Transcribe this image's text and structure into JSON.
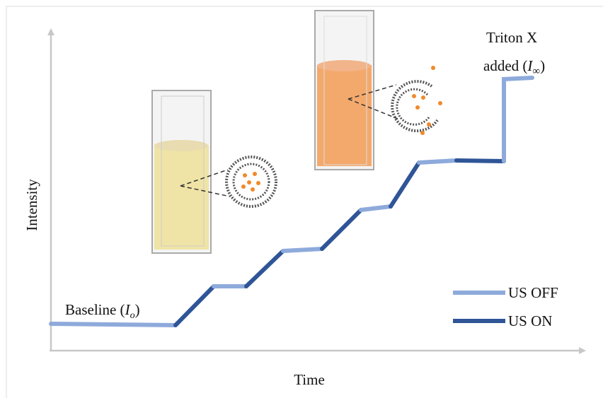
{
  "axes": {
    "y_label": "Intensity",
    "x_label": "Time"
  },
  "annotations": {
    "baseline": {
      "text": "Baseline (",
      "symbol": "I",
      "subscript": "o",
      "close": ")"
    },
    "triton": {
      "line1": "Triton X",
      "text": "added (",
      "symbol": "I",
      "subscript": "∞",
      "close": ")"
    }
  },
  "legend": {
    "items": [
      "US OFF",
      "US ON"
    ]
  }
}
